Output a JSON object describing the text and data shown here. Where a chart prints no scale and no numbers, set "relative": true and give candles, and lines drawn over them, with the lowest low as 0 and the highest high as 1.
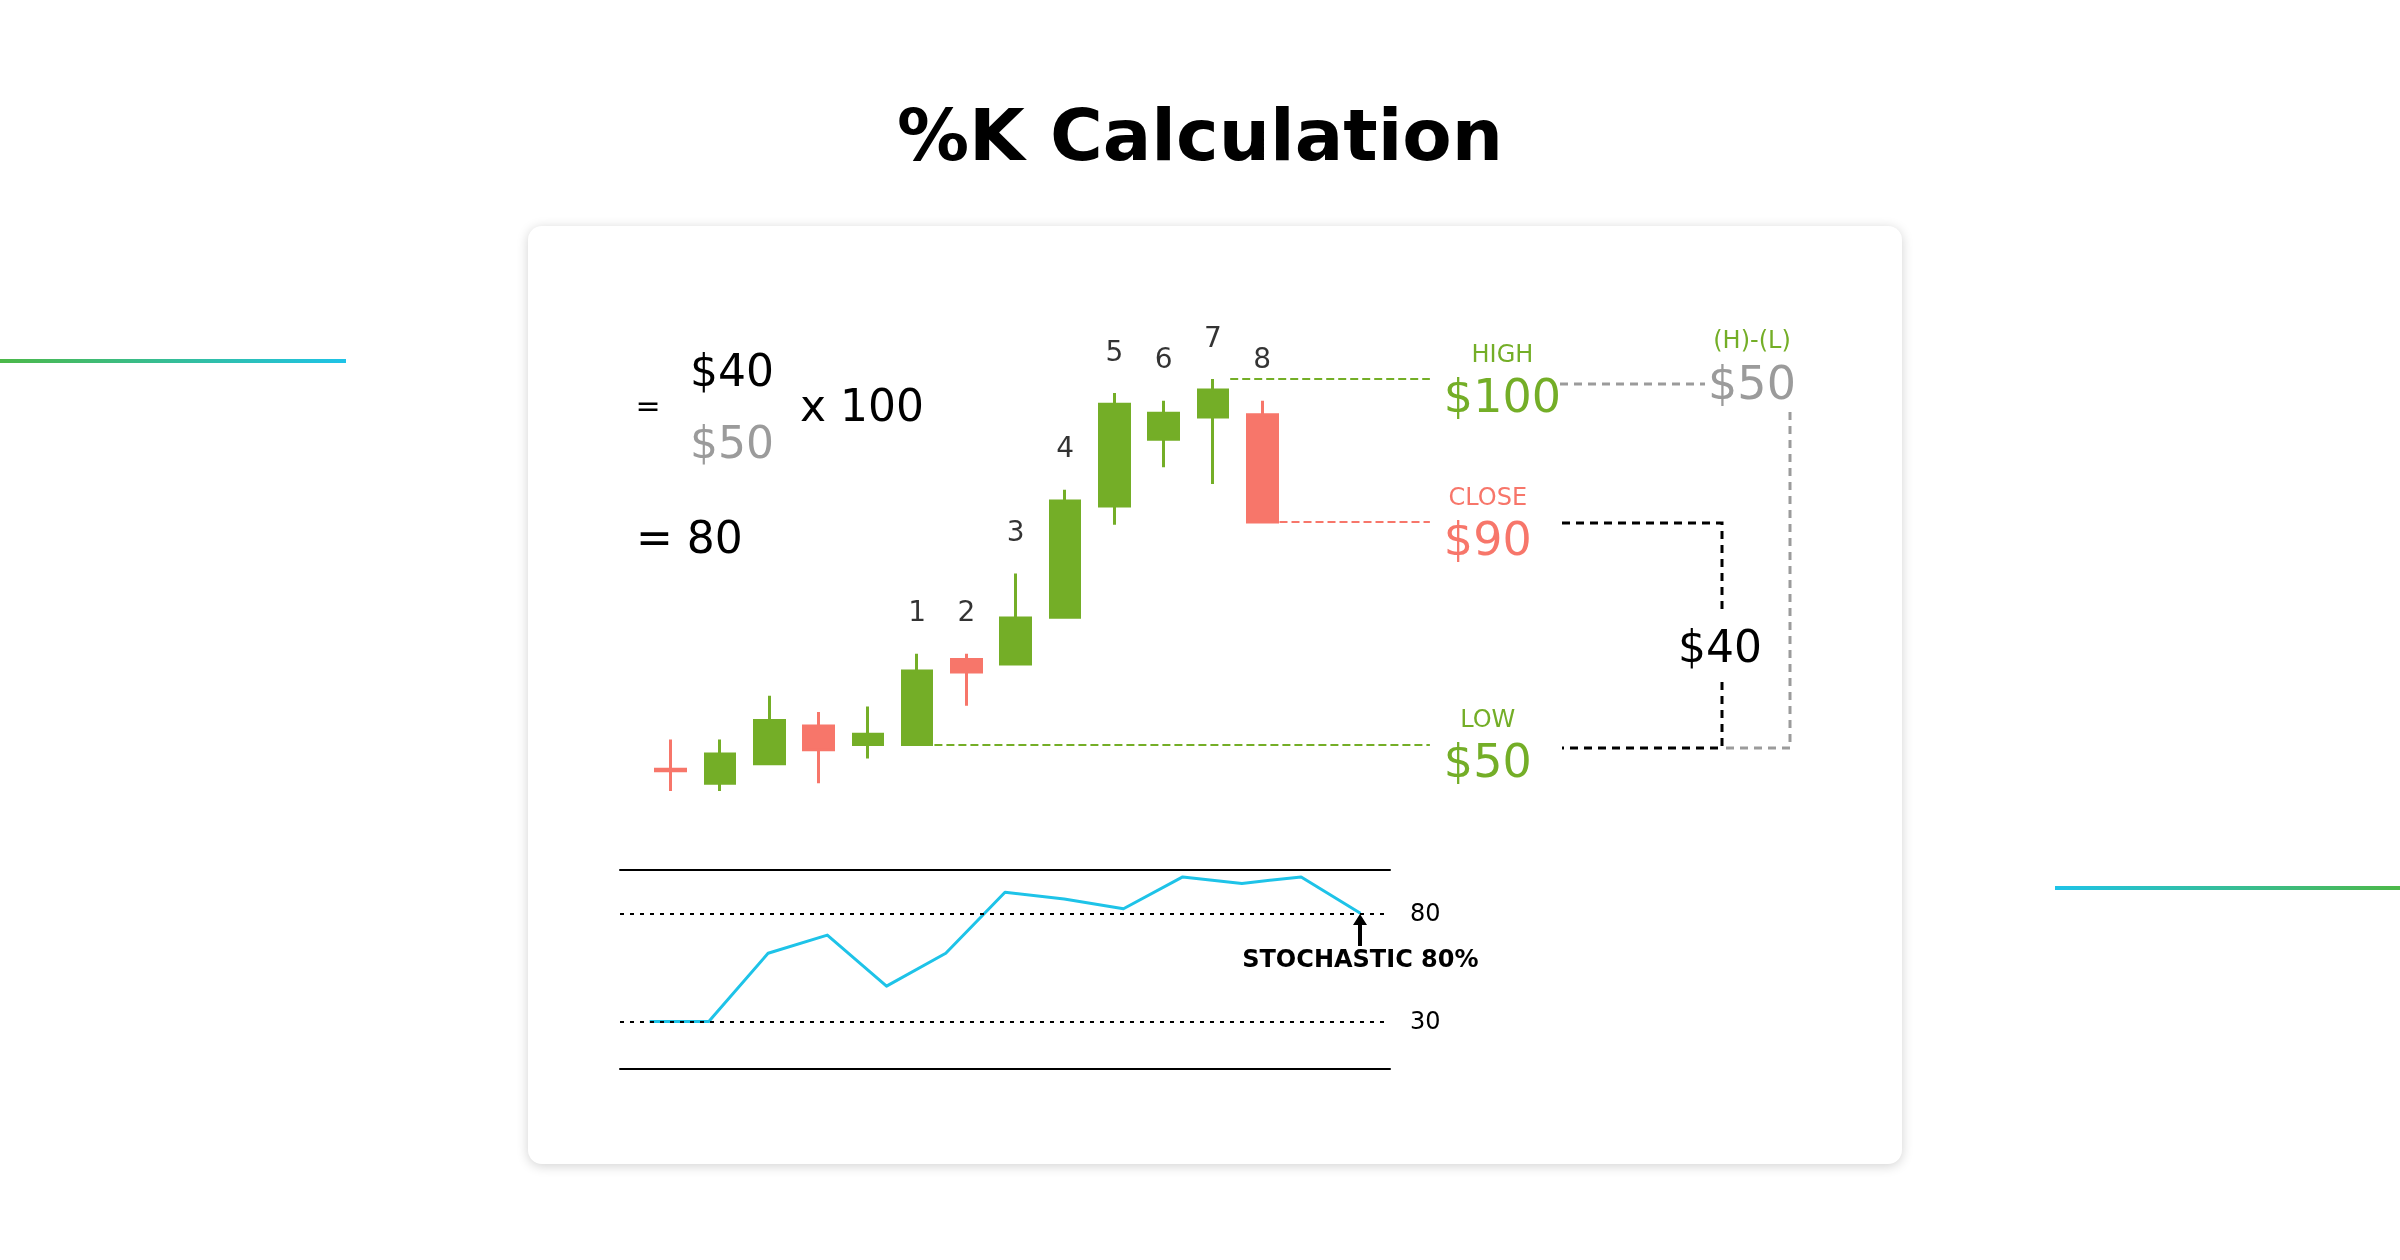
{
  "chart_data": [
    {
      "type": "candlestick",
      "title": "%K Calculation",
      "relative": true,
      "categories": [
        null,
        null,
        null,
        null,
        null,
        "1",
        "2",
        "3",
        "4",
        "5",
        "6",
        "7",
        "8"
      ],
      "ohlc": [
        [
          0.053,
          0.125,
          0,
          0.049
        ],
        [
          0.019,
          0.125,
          0,
          0.09
        ],
        [
          0.066,
          0.231,
          0.066,
          0.171
        ],
        [
          0.158,
          0.192,
          0.019,
          0.1
        ],
        [
          0.113,
          0.205,
          0.079,
          0.138
        ],
        [
          0.113,
          0.333,
          0.113,
          0.291
        ],
        [
          0.319,
          0.333,
          0.207,
          0.289
        ],
        [
          0.308,
          0.528,
          0.308,
          0.42
        ],
        [
          0.422,
          0.731,
          0.422,
          0.704
        ],
        [
          0.692,
          0.966,
          0.646,
          0.939
        ],
        [
          0.854,
          0.947,
          0.786,
          0.917
        ],
        [
          0.908,
          1,
          0.745,
          0.973
        ],
        [
          0.913,
          0.947,
          0.653,
          0.653
        ]
      ],
      "colors": [
        "#f7766a",
        "#74ae27",
        "#74ae27",
        "#f7766a",
        "#74ae27",
        "#74ae27",
        "#f7766a",
        "#74ae27",
        "#74ae27",
        "#74ae27",
        "#74ae27",
        "#74ae27",
        "#f7766a"
      ],
      "ref_lines": [
        {
          "axis": "y",
          "value": 1,
          "label": "HIGH\n$100",
          "color": "#74ae27",
          "line_style": "dashed"
        },
        {
          "axis": "y",
          "value": 0.653,
          "label": "CLOSE\n$90",
          "color": "#f7766a",
          "line_style": "dashed"
        },
        {
          "axis": "y",
          "value": 0.113,
          "label": "LOW\n$50",
          "color": "#74ae27",
          "line_style": "dashed"
        }
      ],
      "annotations": [
        "=",
        "$40",
        "$50",
        "x 100",
        "= 80",
        "(H)-(L)",
        "$50",
        "$40"
      ]
    },
    {
      "type": "line",
      "categories": [
        null,
        null,
        null,
        null,
        null,
        null,
        null,
        null,
        null,
        null,
        null,
        null,
        null
      ],
      "values": [
        30,
        30,
        61.5,
        69.9,
        46.3,
        61.5,
        89.7,
        86.6,
        82.1,
        96.8,
        93.8,
        96.8,
        80
      ],
      "color": "#1ec3e8",
      "ylim": [
        8,
        100
      ],
      "yticks": [
        30,
        80
      ],
      "grid": "y",
      "tick_labels": "y",
      "marker": "none",
      "annotations": [
        {
          "text": "STOCHASTIC 80%",
          "y": 80
        }
      ]
    }
  ]
}
